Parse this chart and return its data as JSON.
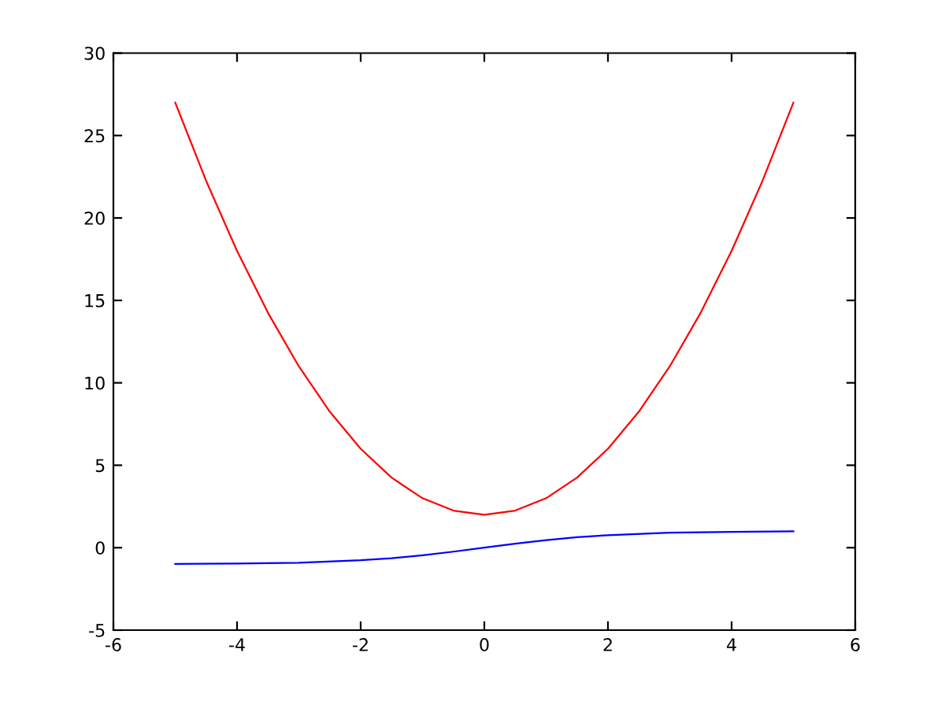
{
  "chart_data": {
    "type": "line",
    "series": [
      {
        "color": "#ff0000",
        "x": [
          -5,
          -4.5,
          -4,
          -3.5,
          -3,
          -2.5,
          -2,
          -1.5,
          -1,
          -0.5,
          0,
          0.5,
          1,
          1.5,
          2,
          2.5,
          3,
          3.5,
          4,
          4.5,
          5
        ],
        "values": [
          27,
          22.25,
          18,
          14.25,
          11,
          8.25,
          6,
          4.25,
          3,
          2.25,
          2,
          2.25,
          3,
          4.25,
          6,
          8.25,
          11,
          14.25,
          18,
          22.25,
          27
        ]
      },
      {
        "color": "#0000ff",
        "x": [
          -5,
          -4,
          -3,
          -2,
          -1.5,
          -1,
          -0.5,
          0,
          0.5,
          1,
          1.5,
          2,
          3,
          4,
          5
        ],
        "values": [
          -0.99,
          -0.96,
          -0.91,
          -0.76,
          -0.64,
          -0.46,
          -0.24,
          0,
          0.24,
          0.46,
          0.64,
          0.76,
          0.91,
          0.96,
          0.99
        ]
      }
    ],
    "xlim": [
      -6,
      6
    ],
    "xticks": [
      -6,
      -4,
      -2,
      0,
      2,
      4,
      6
    ],
    "ylim": [
      -5,
      30
    ],
    "yticks": [
      -5,
      0,
      5,
      10,
      15,
      20,
      25,
      30
    ],
    "grid": false,
    "legend": false,
    "marker": "none",
    "line_style": "solid"
  }
}
